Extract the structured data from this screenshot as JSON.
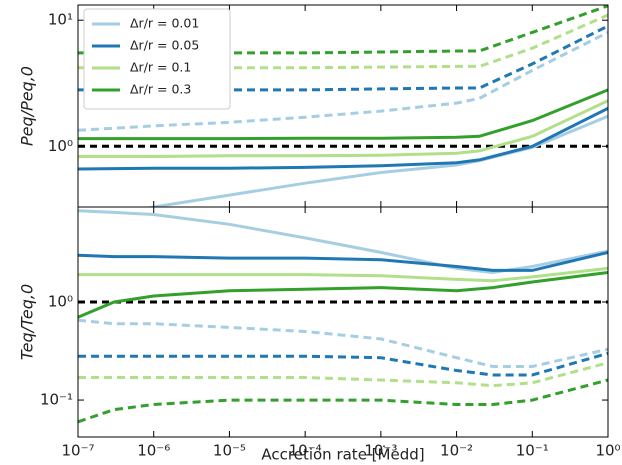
{
  "chart_data": [
    {
      "type": "line",
      "ylabel": "Peq/Peq,0",
      "log_x": true,
      "log_y": true,
      "xlim": [
        1e-07,
        1
      ],
      "ylim": [
        0.33,
        13.2
      ],
      "yticks": [
        {
          "value": 1,
          "label": "10⁰"
        },
        {
          "value": 10,
          "label": "10¹"
        }
      ],
      "reference_line": 1,
      "reference_color": "#000000",
      "legend": "upper left",
      "x": [
        1e-07,
        1e-06,
        1e-05,
        0.0001,
        0.001,
        0.01,
        0.02,
        0.1,
        1
      ],
      "series": [
        {
          "name": "Δr/r = 0.01",
          "color": "#a6cee3",
          "linestyle": "solid",
          "values": [
            0.25,
            0.33,
            0.41,
            0.51,
            0.62,
            0.71,
            0.77,
            0.98,
            1.73
          ]
        },
        {
          "name": "Δr/r = 0.05",
          "color": "#1f78b4",
          "linestyle": "solid",
          "values": [
            0.66,
            0.67,
            0.67,
            0.68,
            0.7,
            0.74,
            0.78,
            1.0,
            2.0
          ]
        },
        {
          "name": "Δr/r = 0.1",
          "color": "#b2df8a",
          "linestyle": "solid",
          "values": [
            0.83,
            0.83,
            0.84,
            0.84,
            0.85,
            0.88,
            0.92,
            1.2,
            2.3
          ]
        },
        {
          "name": "Δr/r = 0.3",
          "color": "#33a02c",
          "linestyle": "solid",
          "values": [
            1.15,
            1.15,
            1.15,
            1.16,
            1.16,
            1.18,
            1.2,
            1.6,
            2.8
          ]
        },
        {
          "color": "#a6cee3",
          "linestyle": "dashed",
          "values": [
            1.34,
            1.45,
            1.55,
            1.7,
            1.9,
            2.2,
            2.4,
            4.0,
            8.0
          ]
        },
        {
          "color": "#1f78b4",
          "linestyle": "dashed",
          "values": [
            2.8,
            2.8,
            2.8,
            2.8,
            2.85,
            2.9,
            2.9,
            4.5,
            9.0
          ]
        },
        {
          "color": "#b2df8a",
          "linestyle": "dashed",
          "values": [
            4.2,
            4.2,
            4.2,
            4.2,
            4.25,
            4.3,
            4.3,
            6.0,
            11.0
          ]
        },
        {
          "color": "#33a02c",
          "linestyle": "dashed",
          "values": [
            5.5,
            5.5,
            5.5,
            5.5,
            5.6,
            5.7,
            5.7,
            8.0,
            13.0
          ]
        }
      ]
    },
    {
      "type": "line",
      "ylabel": "Teq/Teq,0",
      "xlabel": "Accretion rate [Ṁedd]",
      "log_x": true,
      "log_y": true,
      "xlim": [
        1e-07,
        1
      ],
      "ylim": [
        0.042,
        9.3
      ],
      "xticks": [
        {
          "value": 1e-07,
          "label": "10⁻⁷"
        },
        {
          "value": 1e-06,
          "label": "10⁻⁶"
        },
        {
          "value": 1e-05,
          "label": "10⁻⁵"
        },
        {
          "value": 0.0001,
          "label": "10⁻⁴"
        },
        {
          "value": 0.001,
          "label": "10⁻³"
        },
        {
          "value": 0.01,
          "label": "10⁻²"
        },
        {
          "value": 0.1,
          "label": "10⁻¹"
        },
        {
          "value": 1,
          "label": "10⁰"
        }
      ],
      "yticks": [
        {
          "value": 0.1,
          "label": "10⁻¹"
        },
        {
          "value": 1,
          "label": "10⁰"
        }
      ],
      "reference_line": 1,
      "reference_color": "#000000",
      "x": [
        1e-07,
        3e-07,
        1e-06,
        1e-05,
        0.0001,
        0.001,
        0.01,
        0.03,
        0.1,
        1
      ],
      "series": [
        {
          "color": "#a6cee3",
          "linestyle": "solid",
          "values": [
            8.5,
            8.2,
            7.8,
            6.2,
            4.5,
            3.2,
            2.2,
            2.0,
            2.3,
            3.3
          ]
        },
        {
          "color": "#1f78b4",
          "linestyle": "solid",
          "values": [
            3.0,
            2.9,
            2.9,
            2.8,
            2.8,
            2.7,
            2.3,
            2.1,
            2.1,
            3.2
          ]
        },
        {
          "color": "#b2df8a",
          "linestyle": "solid",
          "values": [
            1.9,
            1.9,
            1.9,
            1.9,
            1.9,
            1.85,
            1.7,
            1.65,
            1.8,
            2.2
          ]
        },
        {
          "color": "#33a02c",
          "linestyle": "solid",
          "values": [
            0.7,
            1.0,
            1.15,
            1.3,
            1.35,
            1.4,
            1.3,
            1.4,
            1.6,
            2.0
          ]
        },
        {
          "color": "#a6cee3",
          "linestyle": "dashed",
          "values": [
            0.65,
            0.6,
            0.6,
            0.55,
            0.5,
            0.42,
            0.27,
            0.22,
            0.22,
            0.33
          ]
        },
        {
          "color": "#1f78b4",
          "linestyle": "dashed",
          "values": [
            0.28,
            0.28,
            0.28,
            0.28,
            0.28,
            0.27,
            0.2,
            0.18,
            0.18,
            0.3
          ]
        },
        {
          "color": "#b2df8a",
          "linestyle": "dashed",
          "values": [
            0.17,
            0.17,
            0.17,
            0.17,
            0.17,
            0.16,
            0.15,
            0.14,
            0.15,
            0.24
          ]
        },
        {
          "color": "#33a02c",
          "linestyle": "dashed",
          "values": [
            0.06,
            0.08,
            0.09,
            0.1,
            0.1,
            0.1,
            0.09,
            0.09,
            0.1,
            0.16
          ]
        }
      ]
    }
  ]
}
